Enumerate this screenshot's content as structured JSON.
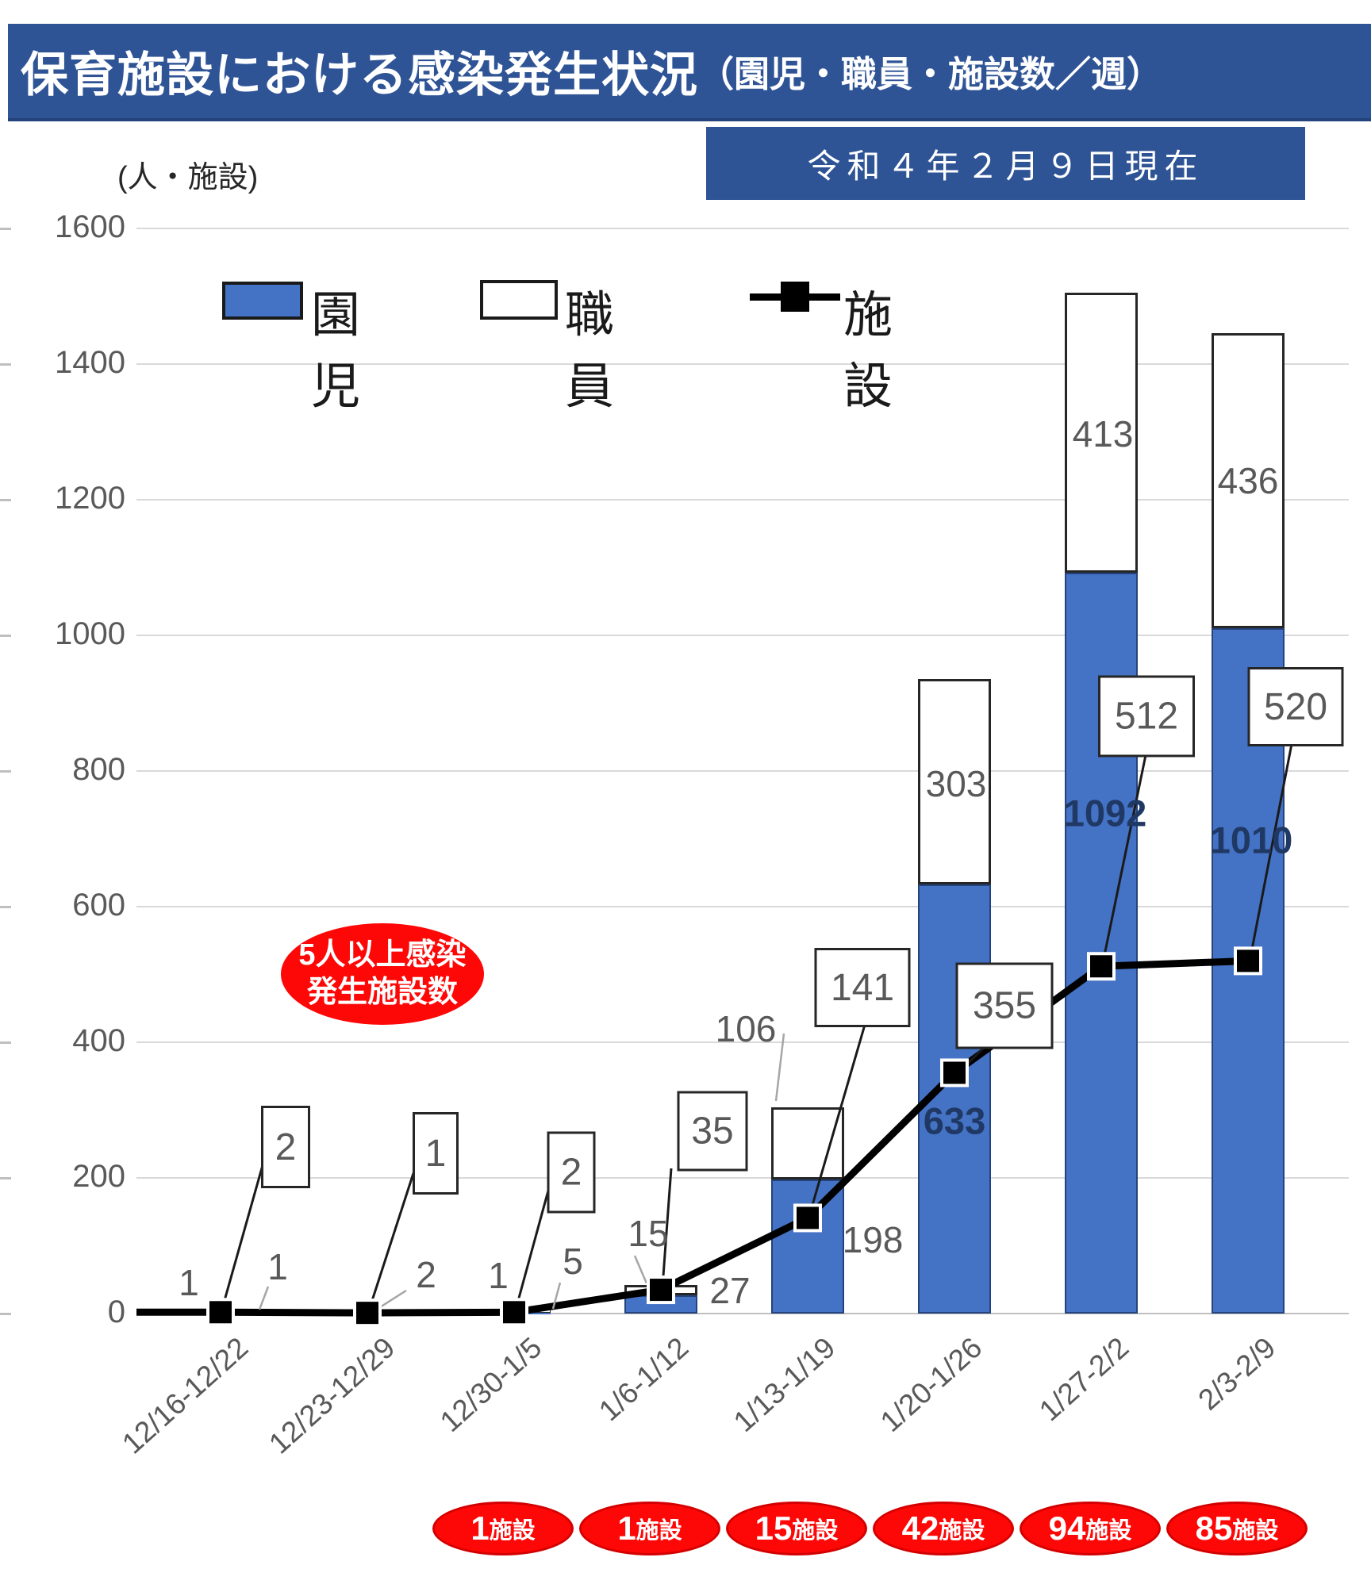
{
  "header": {
    "title_main": "保育施設における感染発生状況",
    "title_paren": "（園児・職員・施設数／週）",
    "date_banner": "令和４年２月９日現在"
  },
  "axis": {
    "unit_label": "(人・施設)",
    "y_ticks": [
      "0",
      "200",
      "400",
      "600",
      "800",
      "1000",
      "1200",
      "1400",
      "1600"
    ]
  },
  "legend": {
    "items": [
      {
        "label": "園児",
        "swatch": "blue-box"
      },
      {
        "label": "職員",
        "swatch": "white-box"
      },
      {
        "label": "施設",
        "swatch": "black-line-square-marker"
      }
    ]
  },
  "annotation_callout": {
    "line1": "5人以上感染",
    "line2": "発生施設数"
  },
  "chart_data": {
    "type": "combo_stacked_bar_line",
    "title": "保育施設における感染発生状況（園児・職員・施設数／週）",
    "categories": [
      "12/16-12/22",
      "12/23-12/29",
      "12/30-1/5",
      "1/6-1/12",
      "1/13-1/19",
      "1/20-1/26",
      "1/27-2/2",
      "2/3-2/9"
    ],
    "series": [
      {
        "name": "園児",
        "type": "bar-stacked",
        "color": "#4472c4",
        "values": [
          1,
          0,
          1,
          27,
          198,
          633,
          1092,
          1010
        ]
      },
      {
        "name": "職員",
        "type": "bar-stacked",
        "color": "#ffffff",
        "values": [
          1,
          2,
          5,
          15,
          106,
          303,
          413,
          436
        ]
      },
      {
        "name": "施設",
        "type": "line",
        "color": "#000000",
        "marker": "black-square",
        "values": [
          2,
          1,
          2,
          35,
          141,
          355,
          512,
          520
        ]
      }
    ],
    "ylabel": "(人・施設)",
    "ylim": [
      0,
      1600
    ],
    "y_step": 200,
    "grid": true,
    "legend_position": "top-left-inside"
  },
  "footer_ovals": {
    "note": "5人以上感染発生施設数 per week (weeks 12/30-1/5 through 2/3-2/9)",
    "suffix": "施設",
    "values": [
      "1",
      "1",
      "15",
      "42",
      "94",
      "85"
    ]
  }
}
